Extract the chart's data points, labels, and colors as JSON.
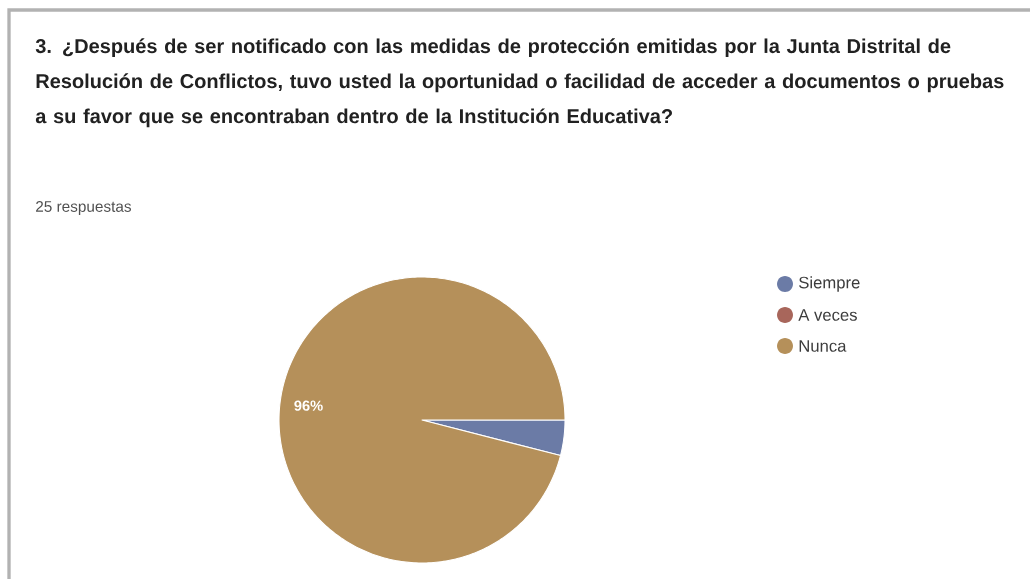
{
  "chart_data": {
    "type": "pie",
    "title": "3. ¿Después de ser notificado con las medidas de protección emitidas por la Junta Distrital de Resolución de Conflictos, tuvo usted la oportunidad o facilidad de acceder a documentos o pruebas a su favor que se encontraban dentro de la Institución Educativa?",
    "subtitle": "25 respuestas",
    "categories": [
      "Siempre",
      "A veces",
      "Nunca"
    ],
    "values": [
      4,
      0,
      96
    ],
    "colors": [
      "#6b7ba6",
      "#a8665b",
      "#b5905a"
    ],
    "value_labels": [
      null,
      null,
      "96%"
    ],
    "legend": "right"
  }
}
